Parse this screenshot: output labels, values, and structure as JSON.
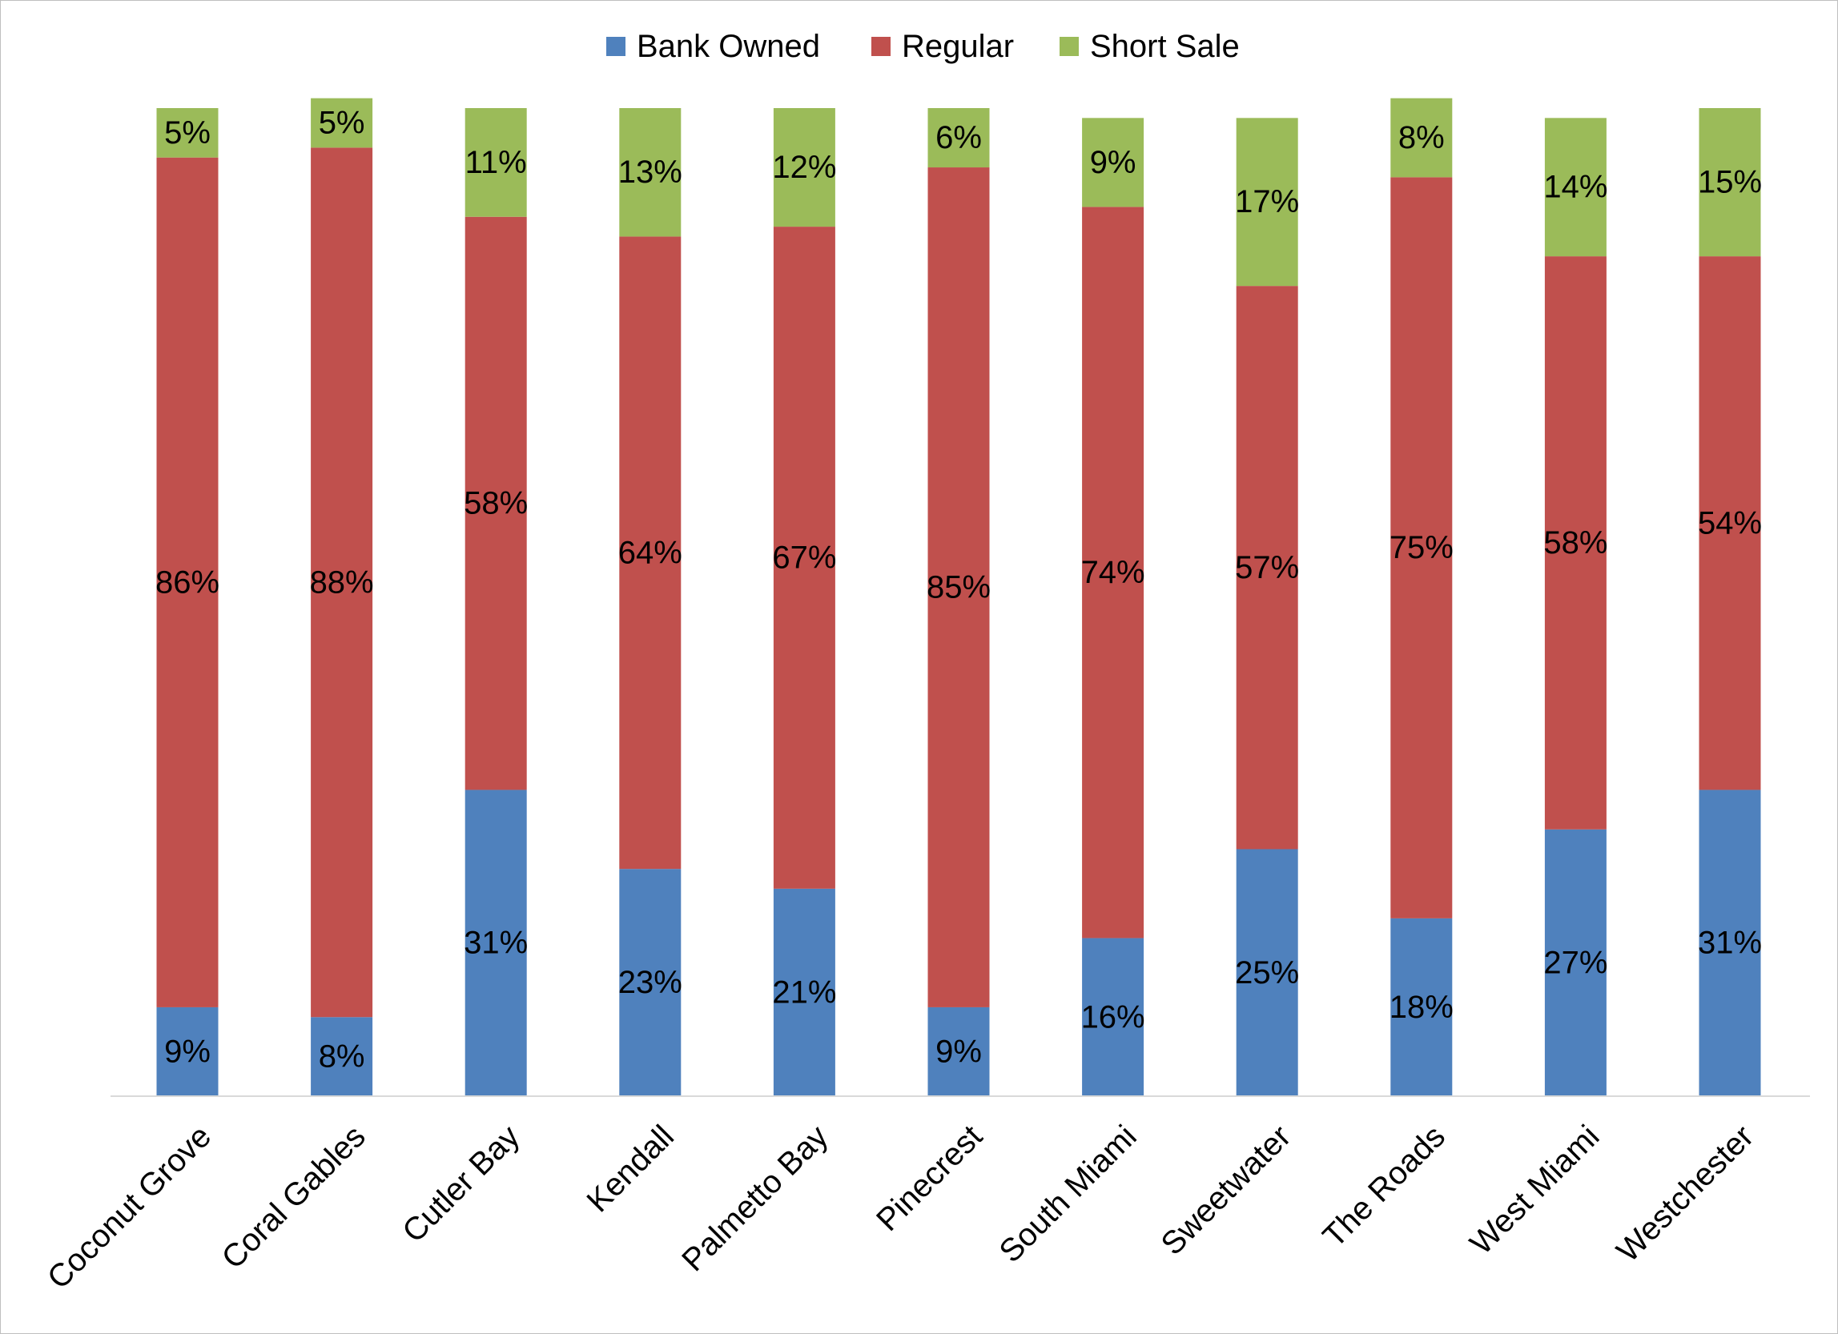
{
  "chart_data": {
    "type": "bar",
    "stacked": true,
    "categories": [
      "Coconut Grove",
      "Coral Gables",
      "Cutler Bay",
      "Kendall",
      "Palmetto Bay",
      "Pinecrest",
      "South Miami",
      "Sweetwater",
      "The Roads",
      "West Miami",
      "Westchester"
    ],
    "series": [
      {
        "name": "Bank Owned",
        "color": "#4f81bd",
        "values": [
          9,
          8,
          31,
          23,
          21,
          9,
          16,
          25,
          18,
          27,
          31
        ],
        "labels": [
          "9%",
          "8%",
          "31%",
          "23%",
          "21%",
          "9%",
          "16%",
          "25%",
          "18%",
          "27%",
          "31%"
        ]
      },
      {
        "name": "Regular",
        "color": "#c0504d",
        "values": [
          86,
          88,
          58,
          64,
          67,
          85,
          74,
          57,
          75,
          58,
          54
        ],
        "labels": [
          "86%",
          "88%",
          "58%",
          "64%",
          "67%",
          "85%",
          "74%",
          "57%",
          "75%",
          "58%",
          "54%"
        ]
      },
      {
        "name": "Short Sale",
        "color": "#9bbb59",
        "values": [
          5,
          5,
          11,
          13,
          12,
          6,
          9,
          17,
          8,
          14,
          15
        ],
        "labels": [
          "5%",
          "5%",
          "11%",
          "13%",
          "12%",
          "6%",
          "9%",
          "17%",
          "8%",
          "14%",
          "15%"
        ]
      }
    ],
    "title": "",
    "xlabel": "",
    "ylabel": "",
    "ylim": [
      0,
      100
    ],
    "grid": false,
    "legend": "top"
  }
}
